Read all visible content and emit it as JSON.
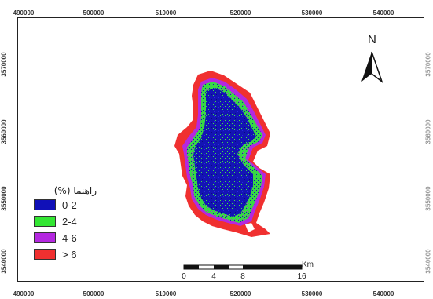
{
  "map": {
    "x_ticks": [
      "490000",
      "500000",
      "510000",
      "520000",
      "530000",
      "540000"
    ],
    "y_ticks": [
      "3570000",
      "3560000",
      "3550000",
      "3540000"
    ],
    "north_label": "N",
    "legend": {
      "title": "راهنما (%)",
      "items": [
        {
          "label": "0-2",
          "color": "#1010b8"
        },
        {
          "label": "2-4",
          "color": "#33e633"
        },
        {
          "label": "4-6",
          "color": "#b428e0"
        },
        {
          "label": "> 6",
          "color": "#f03030"
        }
      ]
    },
    "scale_bar": {
      "labels": [
        "0",
        "4",
        "8",
        "16"
      ],
      "unit": "Km"
    }
  }
}
